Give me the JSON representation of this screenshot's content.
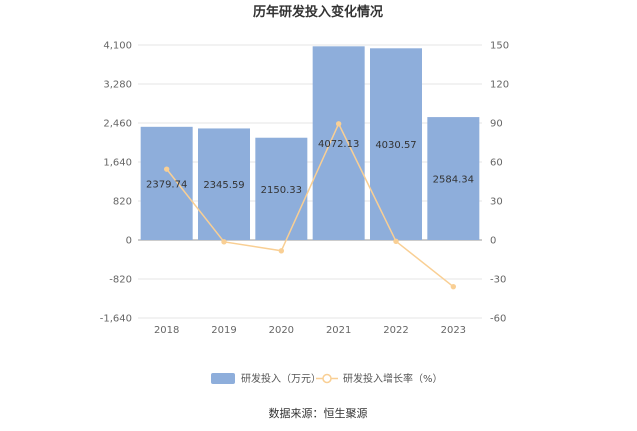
{
  "chart_data": {
    "type": "bar",
    "title": "历年研发投入变化情况",
    "categories": [
      "2018",
      "2019",
      "2020",
      "2021",
      "2022",
      "2023"
    ],
    "series": [
      {
        "name": "研发投入（万元）",
        "type": "bar",
        "axis": "left",
        "color": "#8eaedb",
        "values": [
          2379.74,
          2345.59,
          2150.33,
          4072.13,
          4030.57,
          2584.34
        ],
        "labels": [
          "2379.74",
          "2345.59",
          "2150.33",
          "4072.13",
          "4030.57",
          "2584.34"
        ]
      },
      {
        "name": "研发投入增长率（%）",
        "type": "line",
        "axis": "right",
        "color": "#f9cf94",
        "values": [
          54.5,
          -1.4,
          -8.3,
          89.4,
          -1.0,
          -35.9
        ]
      }
    ],
    "y_left": {
      "ticks": [
        "4,100",
        "3,280",
        "2,460",
        "1,640",
        "820",
        "0",
        "-820",
        "-1,640"
      ],
      "ylim": [
        -1640,
        4100
      ]
    },
    "y_right": {
      "ticks": [
        "150",
        "120",
        "90",
        "60",
        "30",
        "0",
        "-30",
        "-60"
      ],
      "ylim": [
        -60,
        150
      ]
    },
    "grid": true,
    "legend_position": "bottom-center",
    "source": "数据来源：恒生聚源"
  }
}
